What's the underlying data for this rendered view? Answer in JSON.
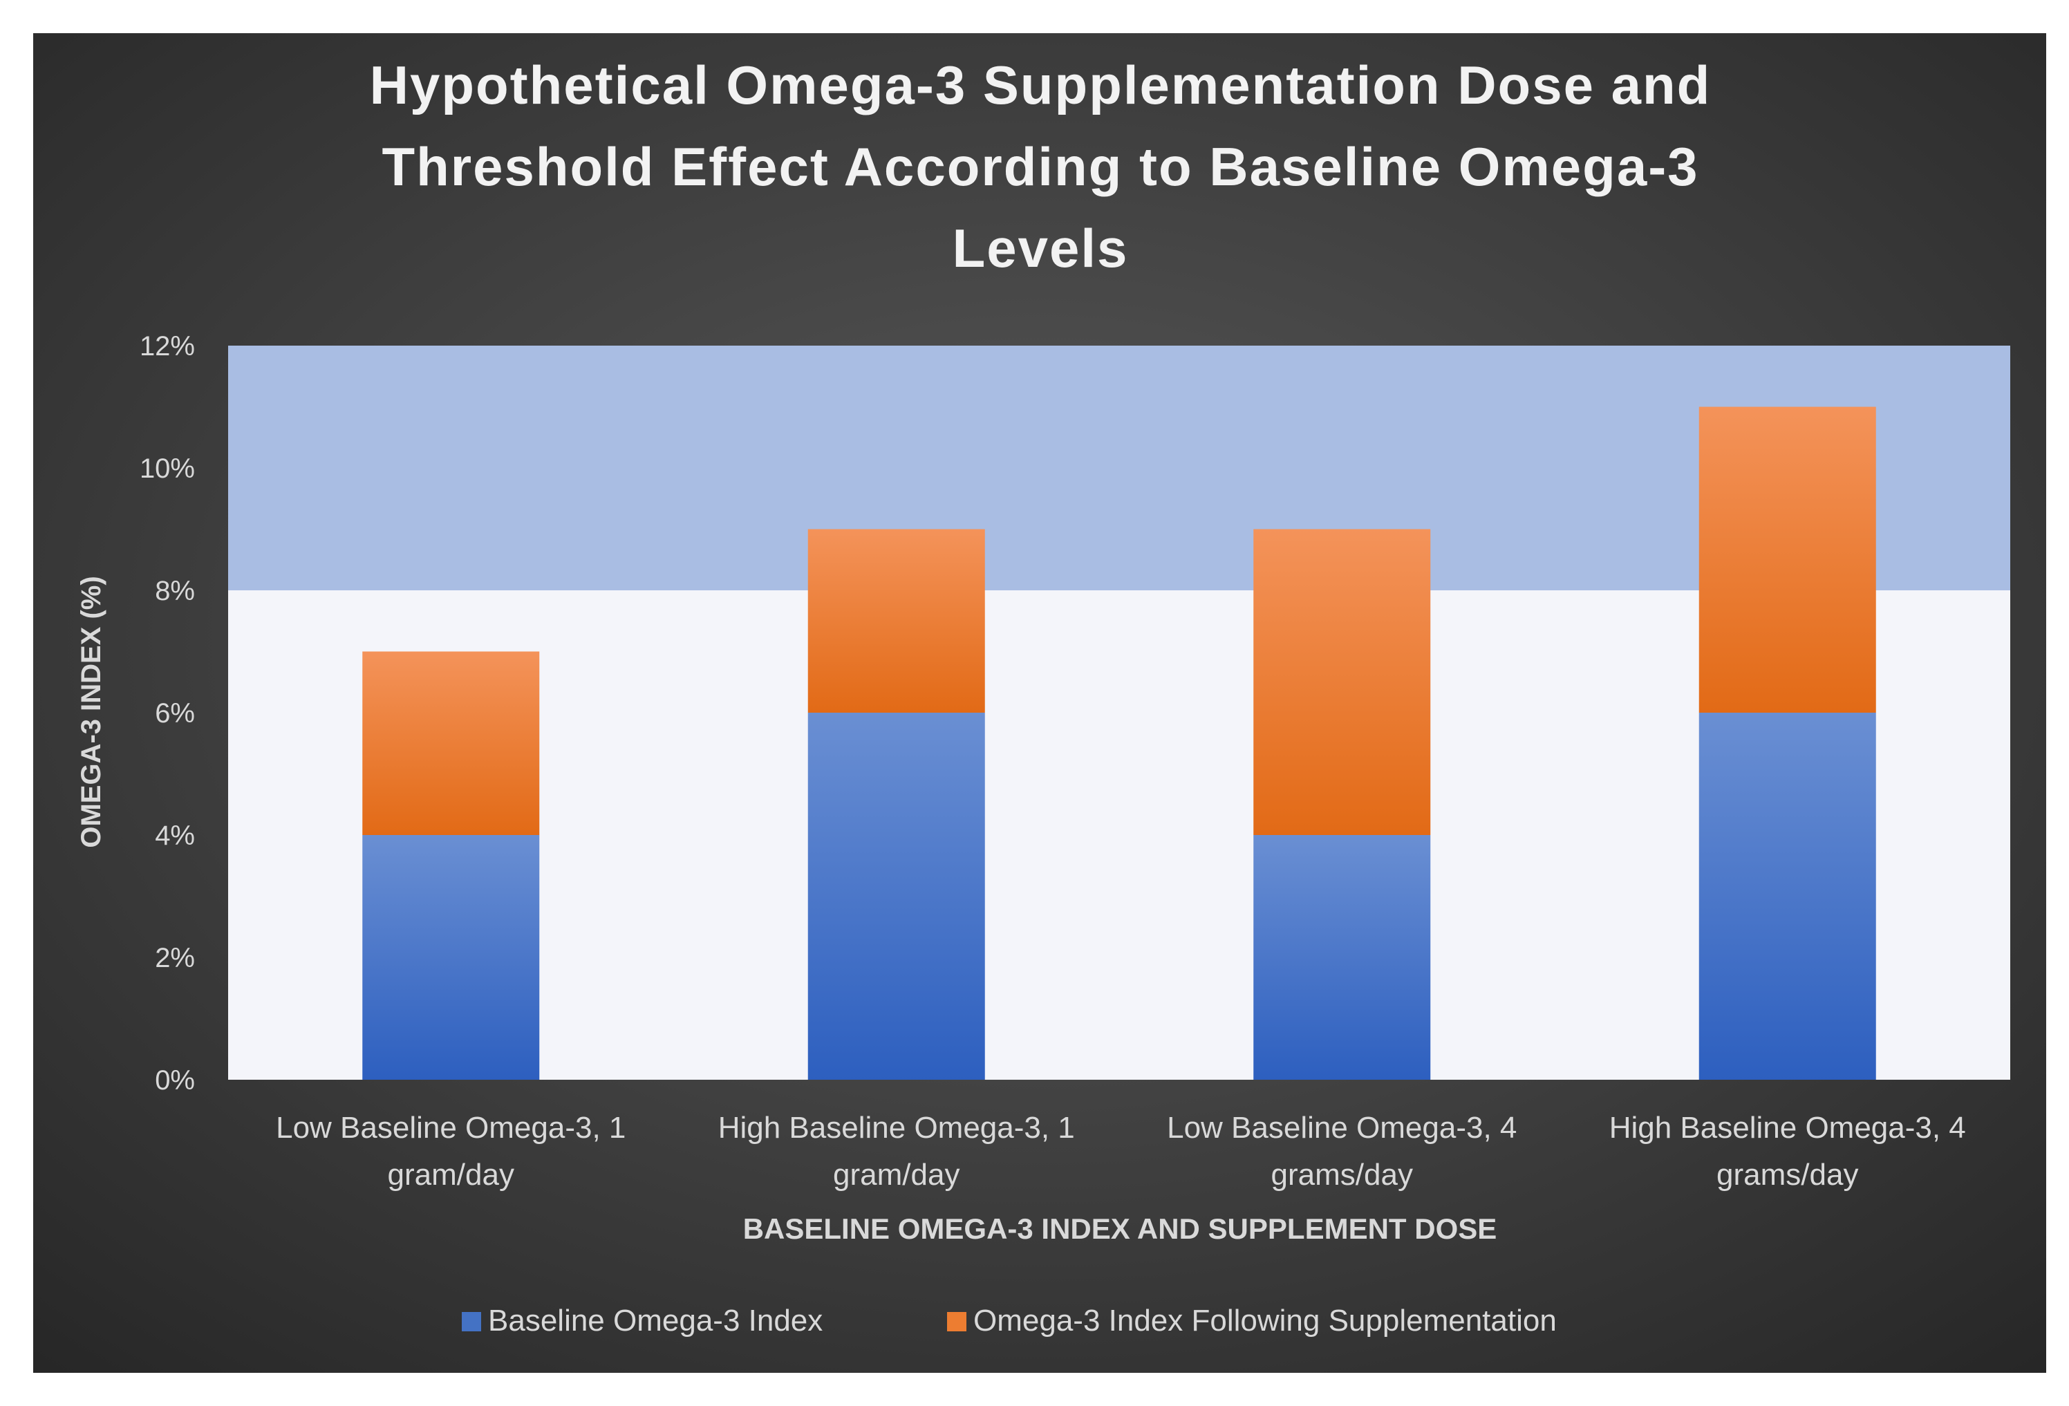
{
  "chart_data": {
    "type": "bar",
    "stacked": true,
    "title_lines": [
      "Hypothetical Omega-3 Supplementation Dose and",
      "Threshold Effect According to Baseline Omega-3",
      "Levels"
    ],
    "xlabel": "BASELINE OMEGA-3 INDEX AND SUPPLEMENT DOSE",
    "ylabel": "OMEGA-3 INDEX (%)",
    "ylim": [
      0,
      12
    ],
    "yticks": [
      {
        "value": 0,
        "label": "0%"
      },
      {
        "value": 2,
        "label": "2%"
      },
      {
        "value": 4,
        "label": "4%"
      },
      {
        "value": 6,
        "label": "6%"
      },
      {
        "value": 8,
        "label": "8%"
      },
      {
        "value": 10,
        "label": "10%"
      },
      {
        "value": 12,
        "label": "12%"
      }
    ],
    "target_band": {
      "from": 8,
      "to": 12,
      "color": "#a9bde3"
    },
    "categories": [
      [
        "Low Baseline Omega-3, 1",
        "gram/day"
      ],
      [
        "High Baseline Omega-3, 1",
        "gram/day"
      ],
      [
        "Low Baseline Omega-3, 4",
        "grams/day"
      ],
      [
        "High Baseline Omega-3, 4",
        "grams/day"
      ]
    ],
    "series": [
      {
        "name": "Baseline Omega-3 Index",
        "color": "#4472c4",
        "values": [
          4,
          6,
          4,
          6
        ]
      },
      {
        "name": "Omega-3 Index Following Supplementation",
        "color": "#ed7d31",
        "values": [
          3,
          3,
          5,
          5
        ]
      }
    ],
    "legend_position": "bottom"
  }
}
